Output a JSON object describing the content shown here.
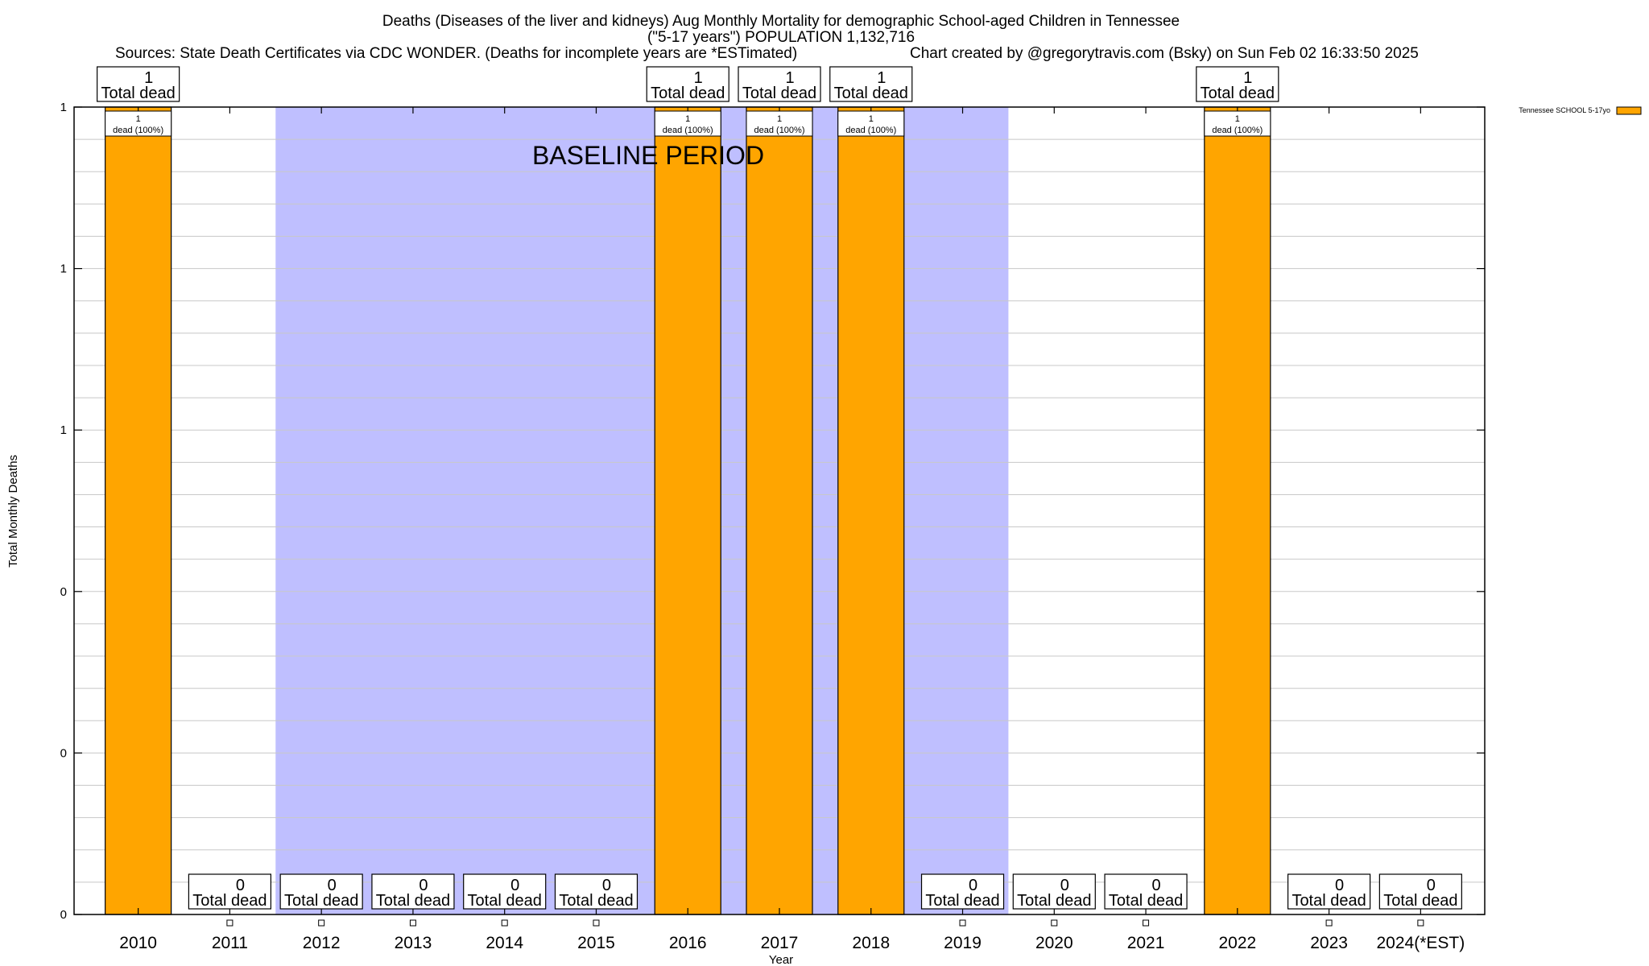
{
  "chart_data": {
    "type": "bar",
    "title_line1": "Deaths (Diseases of the liver and kidneys) Aug Monthly Mortality for demographic School-aged Children in Tennessee",
    "title_line2": "(\"5-17 years\") POPULATION 1,132,716",
    "sources": "Sources: State Death Certificates via CDC WONDER. (Deaths for incomplete years are *ESTimated)",
    "credit": "Chart created by @gregorytravis.com (Bsky) on Sun Feb 02 16:33:50 2025",
    "xlabel": "Year",
    "ylabel": "Total Monthly Deaths",
    "categories": [
      "2010",
      "2011",
      "2012",
      "2013",
      "2014",
      "2015",
      "2016",
      "2017",
      "2018",
      "2019",
      "2020",
      "2021",
      "2022",
      "2023",
      "2024(*EST)"
    ],
    "values": [
      1,
      0,
      0,
      0,
      0,
      0,
      1,
      1,
      1,
      0,
      0,
      0,
      1,
      0,
      0
    ],
    "ylim": [
      0,
      1
    ],
    "yticks": [
      {
        "value": 0,
        "label": "0"
      },
      {
        "value": 0.2,
        "label": "0"
      },
      {
        "value": 0.4,
        "label": "0"
      },
      {
        "value": 0.6,
        "label": "1"
      },
      {
        "value": 0.8,
        "label": "1"
      },
      {
        "value": 1.0,
        "label": "1"
      }
    ],
    "total_label_suffix": "Total dead",
    "inner_label_text": "dead (100%)",
    "baseline": {
      "label": "BASELINE PERIOD",
      "from": "2012",
      "to": "2019"
    },
    "series": [
      {
        "name": "Tennessee SCHOOL 5-17yo",
        "color": "#FFA500"
      }
    ],
    "legend_position": "top-right",
    "grid": true,
    "colors": {
      "bar": "#FFA500",
      "baseline": "#BFBFFF",
      "grid": "#C8C8C8"
    }
  }
}
